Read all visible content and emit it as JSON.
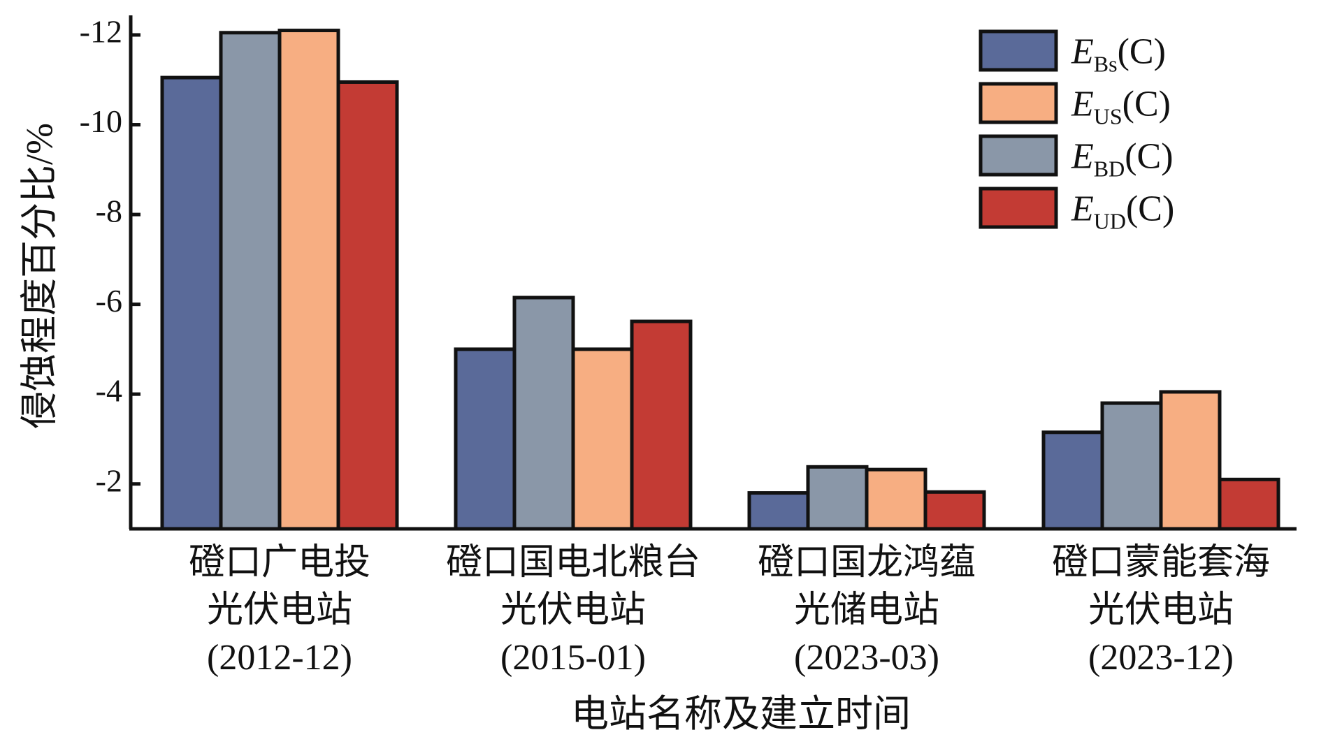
{
  "chart_data": {
    "type": "bar",
    "ylabel": "侵蚀程度百分比/%",
    "xlabel": "电站名称及建立时间",
    "ylim": [
      -1,
      -12.7
    ],
    "yticks": [
      -2,
      -4,
      -6,
      -8,
      -10,
      -12
    ],
    "ytick_labels": [
      "-2",
      "-4",
      "-6",
      "-8",
      "-10",
      "-12"
    ],
    "categories": [
      [
        "磴口广电投",
        "光伏电站",
        "(2012-12)"
      ],
      [
        "磴口国电北粮台",
        "光伏电站",
        "(2015-01)"
      ],
      [
        "磴口国龙鸿蕴",
        "光储电站",
        "(2023-03)"
      ],
      [
        "磴口蒙能套海",
        "光伏电站",
        "(2023-12)"
      ]
    ],
    "bar_order": [
      "EBs",
      "EBD",
      "EUs",
      "EUD"
    ],
    "series": [
      {
        "key": "EBs",
        "name_main": "E",
        "name_sub": "Bs",
        "name_tail": "(C)",
        "color": "#5a6a99",
        "values": [
          -11.05,
          -5.0,
          -1.8,
          -3.15
        ]
      },
      {
        "key": "EUs",
        "name_main": "E",
        "name_sub": "US",
        "name_tail": "(C)",
        "color": "#f7ae82",
        "values": [
          -12.1,
          -5.0,
          -2.32,
          -4.05
        ]
      },
      {
        "key": "EBD",
        "name_main": "E",
        "name_sub": "BD",
        "name_tail": "(C)",
        "color": "#8a97a8",
        "values": [
          -12.05,
          -6.15,
          -2.38,
          -3.8
        ]
      },
      {
        "key": "EUD",
        "name_main": "E",
        "name_sub": "UD",
        "name_tail": "(C)",
        "color": "#c33b34",
        "values": [
          -10.95,
          -5.62,
          -1.82,
          -2.1
        ]
      }
    ],
    "legend_position": "top-right",
    "grid": false
  }
}
